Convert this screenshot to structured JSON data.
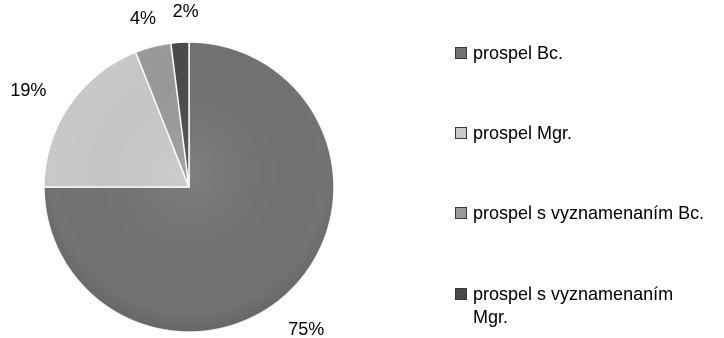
{
  "chart_data": {
    "type": "pie",
    "title": "",
    "series": [
      {
        "values": [
          75,
          19,
          4,
          2
        ],
        "labels": [
          "75%",
          "19%",
          "4%",
          "2%"
        ]
      }
    ],
    "categories": [
      "prospel Bc.",
      "prospel Mgr.",
      "prospel s vyznamenaním Bc.",
      "prospel s vyznamenaním Mgr."
    ],
    "colors": [
      "#727272",
      "#c9c9c9",
      "#9a9a9a",
      "#4a4a4a"
    ],
    "legend": "right"
  }
}
